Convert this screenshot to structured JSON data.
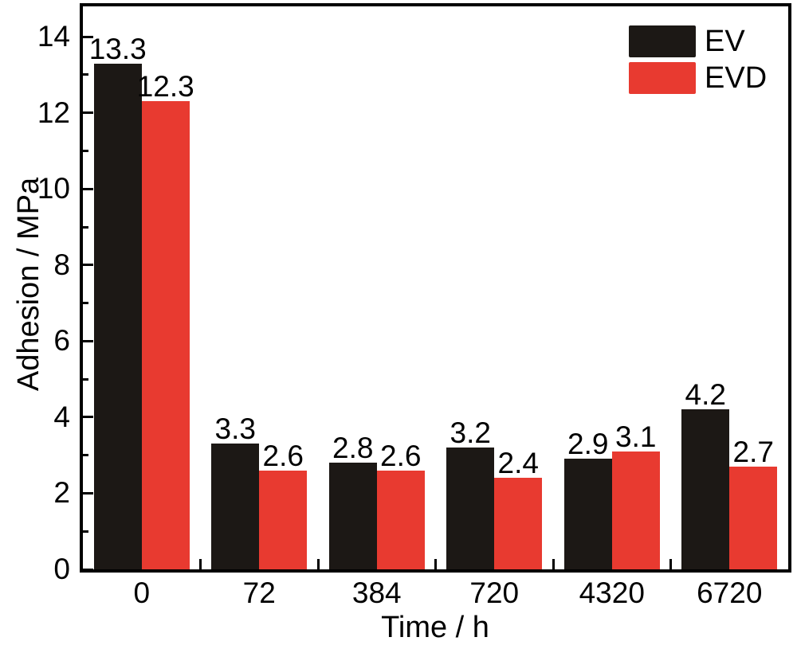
{
  "chart_data": {
    "type": "bar",
    "title": "",
    "xlabel": "Time / h",
    "ylabel": "Adhesion / MPa",
    "categories": [
      "0",
      "72",
      "384",
      "720",
      "4320",
      "6720"
    ],
    "series": [
      {
        "name": "EV",
        "color": "#1c1815",
        "values": [
          13.3,
          3.3,
          2.8,
          3.2,
          2.9,
          4.2
        ]
      },
      {
        "name": "EVD",
        "color": "#e83a30",
        "values": [
          12.3,
          2.6,
          2.6,
          2.4,
          3.1,
          2.7
        ]
      }
    ],
    "value_labels_shown": true,
    "value_label_decimals": 1,
    "ylim": [
      0,
      14.8
    ],
    "yticks_major": [
      0,
      2,
      4,
      6,
      8,
      10,
      12,
      14
    ],
    "yticks_minor": [
      1,
      3,
      5,
      7,
      9,
      11,
      13
    ],
    "grid": false,
    "legend_position": "top-right",
    "axis_color": "#000000",
    "background_color": "#ffffff"
  }
}
